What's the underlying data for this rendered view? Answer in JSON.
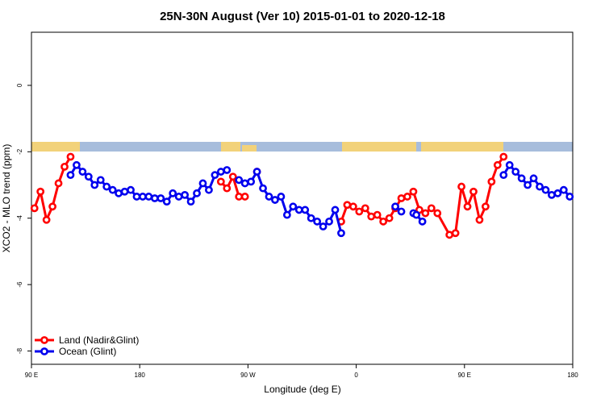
{
  "chart_data": {
    "type": "line",
    "title": "25N-30N August (Ver 10)   2015-01-01 to 2020-12-18",
    "x_label": "Longitude (deg E)",
    "y_label": "XCO2 - MLO trend (ppm)",
    "xlim": [
      90,
      540
    ],
    "xticks": [
      {
        "value": 90,
        "label": "90 E"
      },
      {
        "value": 180,
        "label": "180"
      },
      {
        "value": 270,
        "label": "90 W"
      },
      {
        "value": 360,
        "label": "0"
      },
      {
        "value": 450,
        "label": "90 E"
      },
      {
        "value": 540,
        "label": "180"
      }
    ],
    "ylim": [
      -8.4,
      1.6
    ],
    "yticks": [
      0,
      -2,
      -4,
      -6,
      -8
    ],
    "legend": "bottom-left",
    "series": [
      {
        "name": "Land (Nadir&Glint)",
        "color": "#ff0000",
        "x": [
          92.5,
          97.5,
          102.5,
          107.5,
          112.5,
          117.5,
          122.5,
          127.5,
          247.5,
          252.5,
          257.5,
          262.5,
          267.5,
          272.5,
          277.5,
          282.5,
          347.5,
          352.5,
          357.5,
          362.5,
          367.5,
          372.5,
          377.5,
          382.5,
          387.5,
          392.5,
          397.5,
          402.5,
          407.5,
          412.5,
          417.5,
          422.5,
          427.5,
          437.5,
          442.5,
          447.5,
          452.5,
          457.5,
          462.5,
          467.5,
          472.5,
          477.5,
          482.5
        ],
        "values": [
          -3.7,
          -3.2,
          -4.05,
          -3.65,
          -2.95,
          -2.45,
          -2.15,
          null,
          -2.9,
          -3.1,
          -2.75,
          -3.35,
          -3.35,
          null,
          -2.6,
          null,
          -4.1,
          -3.6,
          -3.65,
          -3.8,
          -3.7,
          -3.95,
          -3.9,
          -4.1,
          -4.0,
          -3.7,
          -3.4,
          -3.35,
          -3.2,
          -3.75,
          -3.85,
          -3.7,
          -3.85,
          -4.5,
          -4.45,
          -3.05,
          -3.65,
          -3.2,
          -4.05,
          -3.65,
          -2.9,
          -2.4,
          -2.15
        ]
      },
      {
        "name": "Ocean (Glint)",
        "color": "#0000ee",
        "x": [
          122.5,
          127.5,
          132.5,
          137.5,
          142.5,
          147.5,
          152.5,
          157.5,
          162.5,
          167.5,
          172.5,
          177.5,
          182.5,
          187.5,
          192.5,
          197.5,
          202.5,
          207.5,
          212.5,
          217.5,
          222.5,
          227.5,
          232.5,
          237.5,
          242.5,
          247.5,
          252.5,
          257.5,
          262.5,
          267.5,
          272.5,
          277.5,
          282.5,
          287.5,
          292.5,
          297.5,
          302.5,
          307.5,
          312.5,
          317.5,
          322.5,
          327.5,
          332.5,
          337.5,
          342.5,
          347.5,
          352.5,
          392.5,
          397.5,
          402.5,
          407.5,
          410,
          415,
          420,
          482.5,
          487.5,
          492.5,
          497.5,
          502.5,
          507.5,
          512.5,
          517.5,
          522.5,
          527.5,
          532.5,
          537.5
        ],
        "values": [
          -2.7,
          -2.4,
          -2.6,
          -2.75,
          -3.0,
          -2.85,
          -3.05,
          -3.15,
          -3.25,
          -3.2,
          -3.15,
          -3.35,
          -3.35,
          -3.35,
          -3.4,
          -3.4,
          -3.5,
          -3.25,
          -3.35,
          -3.3,
          -3.5,
          -3.25,
          -2.95,
          -3.15,
          -2.7,
          -2.6,
          -2.55,
          null,
          -2.85,
          -2.95,
          -2.9,
          -2.6,
          -3.1,
          -3.35,
          -3.45,
          -3.35,
          -3.9,
          -3.65,
          -3.75,
          -3.75,
          -4.0,
          -4.1,
          -4.25,
          -4.1,
          -3.75,
          -4.45,
          null,
          -3.65,
          -3.8,
          null,
          -3.85,
          -3.9,
          -4.1,
          null,
          -2.7,
          -2.4,
          -2.6,
          -2.8,
          -3.0,
          -2.8,
          -3.05,
          -3.15,
          -3.3,
          -3.25,
          -3.15,
          -3.35
        ]
      }
    ]
  }
}
